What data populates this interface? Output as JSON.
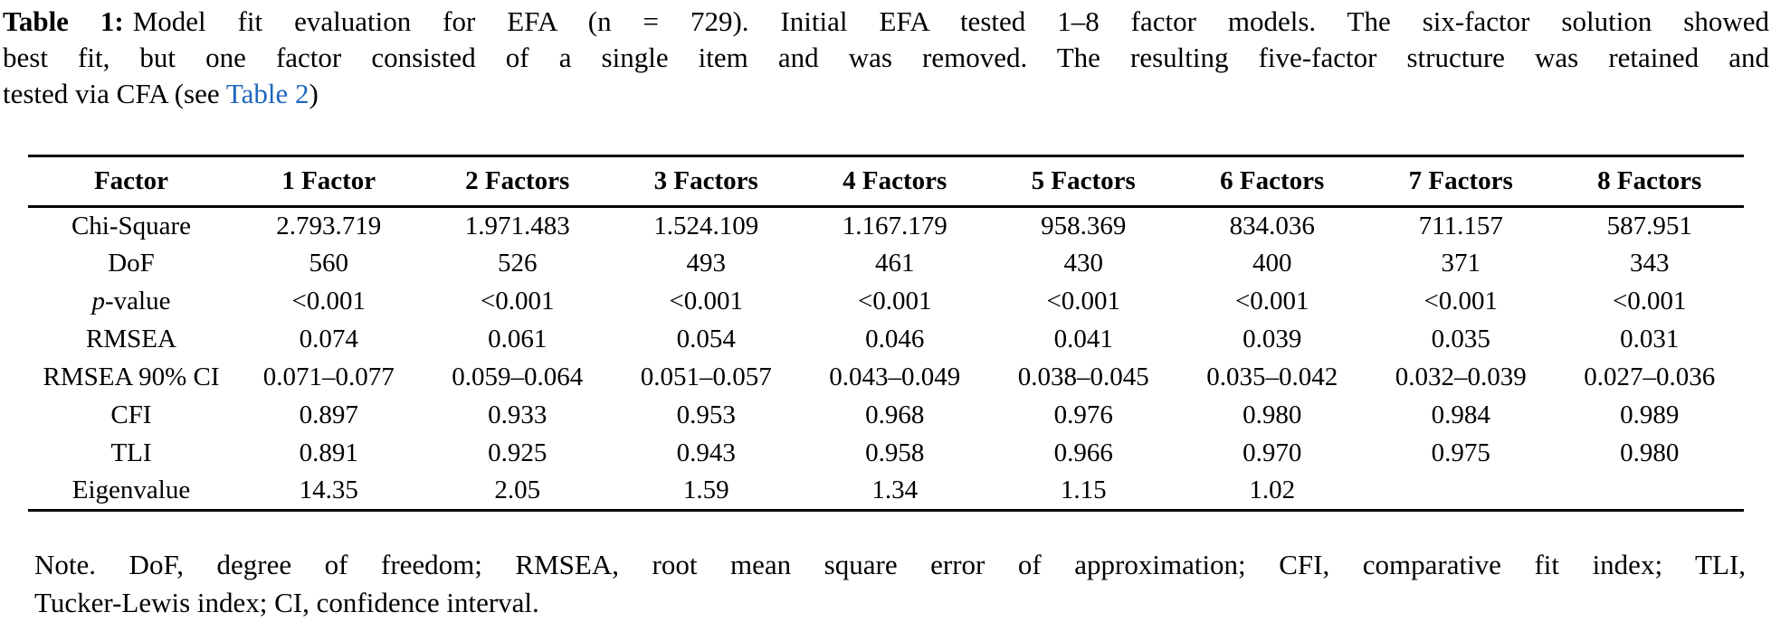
{
  "caption": {
    "label": "Table 1:",
    "line1_rest": "Model fit evaluation for EFA (n = 729). Initial EFA tested 1–8 factor models. The six-factor solution showed",
    "line2": "best fit, but one factor consisted of a single item and was removed. The resulting five-factor structure was retained and",
    "line3_prefix": "tested via CFA (see ",
    "link_text": "Table 2",
    "line3_suffix": ")"
  },
  "table": {
    "headers": [
      "Factor",
      "1 Factor",
      "2 Factors",
      "3 Factors",
      "4 Factors",
      "5 Factors",
      "6 Factors",
      "7 Factors",
      "8 Factors"
    ],
    "rows": [
      {
        "label": [
          {
            "text": "Chi-Square",
            "italic": false
          }
        ],
        "values": [
          "2.793.719",
          "1.971.483",
          "1.524.109",
          "1.167.179",
          "958.369",
          "834.036",
          "711.157",
          "587.951"
        ]
      },
      {
        "label": [
          {
            "text": "DoF",
            "italic": false
          }
        ],
        "values": [
          "560",
          "526",
          "493",
          "461",
          "430",
          "400",
          "371",
          "343"
        ]
      },
      {
        "label": [
          {
            "text": "p",
            "italic": true
          },
          {
            "text": "-value",
            "italic": false
          }
        ],
        "values": [
          "<0.001",
          "<0.001",
          "<0.001",
          "<0.001",
          "<0.001",
          "<0.001",
          "<0.001",
          "<0.001"
        ]
      },
      {
        "label": [
          {
            "text": "RMSEA",
            "italic": false
          }
        ],
        "values": [
          "0.074",
          "0.061",
          "0.054",
          "0.046",
          "0.041",
          "0.039",
          "0.035",
          "0.031"
        ]
      },
      {
        "label": [
          {
            "text": "RMSEA 90% CI",
            "italic": false
          }
        ],
        "values": [
          "0.071–0.077",
          "0.059–0.064",
          "0.051–0.057",
          "0.043–0.049",
          "0.038–0.045",
          "0.035–0.042",
          "0.032–0.039",
          "0.027–0.036"
        ]
      },
      {
        "label": [
          {
            "text": "CFI",
            "italic": false
          }
        ],
        "values": [
          "0.897",
          "0.933",
          "0.953",
          "0.968",
          "0.976",
          "0.980",
          "0.984",
          "0.989"
        ]
      },
      {
        "label": [
          {
            "text": "TLI",
            "italic": false
          }
        ],
        "values": [
          "0.891",
          "0.925",
          "0.943",
          "0.958",
          "0.966",
          "0.970",
          "0.975",
          "0.980"
        ]
      },
      {
        "label": [
          {
            "text": "Eigenvalue",
            "italic": false
          }
        ],
        "values": [
          "14.35",
          "2.05",
          "1.59",
          "1.34",
          "1.15",
          "1.02",
          "",
          ""
        ]
      }
    ]
  },
  "note": {
    "line1": "Note. DoF, degree of freedom; RMSEA, root mean square error of approximation; CFI, comparative fit index; TLI,",
    "line2": "Tucker-Lewis index; CI, confidence interval."
  },
  "colors": {
    "text": "#000000",
    "link": "#1f66bb",
    "background": "#ffffff"
  }
}
